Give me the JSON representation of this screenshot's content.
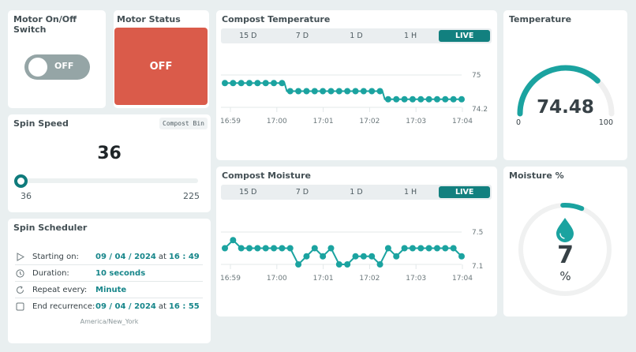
{
  "motor_switch": {
    "title": "Motor On/Off Switch",
    "state": "OFF"
  },
  "motor_status": {
    "title": "Motor Status",
    "value": "OFF",
    "color": "#da5b4a"
  },
  "spin_speed": {
    "title": "Spin Speed",
    "tag": "Compost Bin",
    "value": "36",
    "min": "36",
    "max": "225"
  },
  "scheduler": {
    "title": "Spin Scheduler",
    "rows": [
      {
        "icon": "play-icon",
        "label": "Starting on:",
        "date": "09 / 04 / 2024",
        "at": "at",
        "time": "16 : 49"
      },
      {
        "icon": "clock-icon",
        "label": "Duration:",
        "value": "10 seconds"
      },
      {
        "icon": "repeat-icon",
        "label": "Repeat every:",
        "value": "Minute"
      },
      {
        "icon": "checkbox-icon",
        "label": "End recurrence:",
        "date": "09 / 04 / 2024",
        "at": "at",
        "time": "16 : 55"
      }
    ],
    "timezone": "America/New_York"
  },
  "tabs": [
    "15 D",
    "7 D",
    "1 D",
    "1 H",
    "LIVE"
  ],
  "compost_temperature": {
    "title": "Compost Temperature",
    "active_tab": "LIVE"
  },
  "compost_moisture": {
    "title": "Compost Moisture",
    "active_tab": "LIVE"
  },
  "temperature_gauge": {
    "title": "Temperature",
    "value": "74.48",
    "min": "0",
    "max": "100"
  },
  "moisture_gauge": {
    "title": "Moisture %",
    "value": "7",
    "unit": "%"
  },
  "colors": {
    "accent": "#12807f",
    "line": "#1ba3a0",
    "status_off": "#da5b4a",
    "switch_off": "#95a5a6",
    "background": "#e9eff0"
  },
  "chart_data": [
    {
      "type": "line",
      "title": "Compost Temperature",
      "x_ticks": [
        "16:59",
        "17:00",
        "17:01",
        "17:02",
        "17:03",
        "17:04"
      ],
      "y_ticks": [
        "75",
        "74.2"
      ],
      "ylim": [
        74.2,
        75
      ],
      "values": [
        74.8,
        74.8,
        74.8,
        74.8,
        74.8,
        74.8,
        74.8,
        74.8,
        74.6,
        74.6,
        74.6,
        74.6,
        74.6,
        74.6,
        74.6,
        74.6,
        74.6,
        74.6,
        74.6,
        74.6,
        74.4,
        74.4,
        74.4,
        74.4,
        74.4,
        74.4,
        74.4,
        74.4,
        74.4,
        74.4
      ]
    },
    {
      "type": "line",
      "title": "Compost Moisture",
      "x_ticks": [
        "16:59",
        "17:00",
        "17:01",
        "17:02",
        "17:03",
        "17:04"
      ],
      "y_ticks": [
        "7.5",
        "7.1"
      ],
      "ylim": [
        7.1,
        7.5
      ],
      "values": [
        7.3,
        7.4,
        7.3,
        7.3,
        7.3,
        7.3,
        7.3,
        7.3,
        7.3,
        7.1,
        7.2,
        7.3,
        7.2,
        7.3,
        7.1,
        7.1,
        7.2,
        7.2,
        7.2,
        7.1,
        7.3,
        7.2,
        7.3,
        7.3,
        7.3,
        7.3,
        7.3,
        7.3,
        7.3,
        7.2
      ]
    }
  ]
}
